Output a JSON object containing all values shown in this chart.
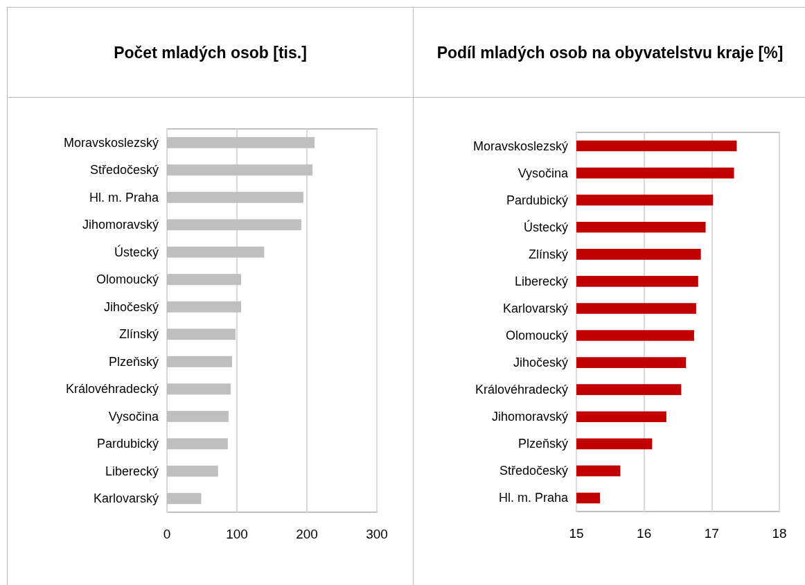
{
  "chart_data": [
    {
      "type": "bar",
      "orientation": "horizontal",
      "title": "Počet mladých osob [tis.]",
      "categories": [
        "Moravskoslezský",
        "Středočeský",
        "Hl. m. Praha",
        "Jihomoravský",
        "Ústecký",
        "Olomoucký",
        "Jihočeský",
        "Zlínský",
        "Plzeňský",
        "Královéhradecký",
        "Vysočina",
        "Pardubický",
        "Liberecký",
        "Karlovarský"
      ],
      "values": [
        211,
        208,
        195,
        192,
        139,
        106,
        106,
        98,
        93,
        91,
        88,
        87,
        73,
        49
      ],
      "color": "#bfbfbf",
      "xlim": [
        0,
        300
      ],
      "xticks": [
        0,
        100,
        200,
        300
      ],
      "grid": "x"
    },
    {
      "type": "bar",
      "orientation": "horizontal",
      "title": "Podíl mladých osob na obyvatelstvu kraje [%]",
      "categories": [
        "Moravskoslezský",
        "Vysočina",
        "Pardubický",
        "Ústecký",
        "Zlínský",
        "Liberecký",
        "Karlovarský",
        "Olomoucký",
        "Jihočeský",
        "Královéhradecký",
        "Jihomoravský",
        "Plzeňský",
        "Středočeský",
        "Hl. m. Praha"
      ],
      "values": [
        17.37,
        17.33,
        17.02,
        16.91,
        16.84,
        16.8,
        16.77,
        16.74,
        16.62,
        16.55,
        16.33,
        16.12,
        15.65,
        15.35
      ],
      "color": "#c00000",
      "xlim": [
        15,
        18
      ],
      "xticks": [
        15,
        16,
        17,
        18
      ],
      "grid": "x"
    }
  ]
}
